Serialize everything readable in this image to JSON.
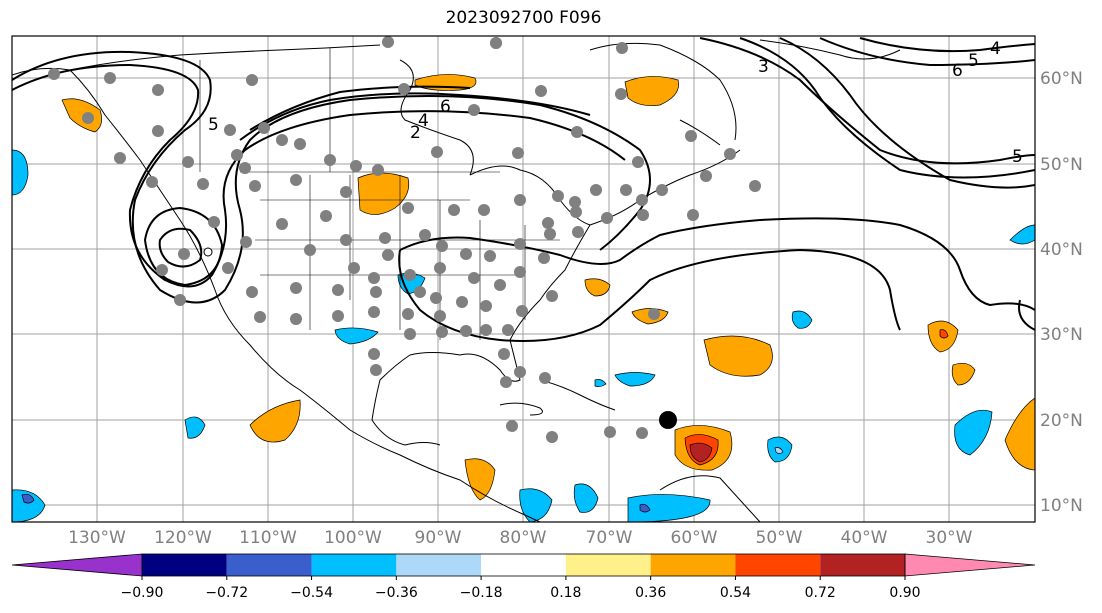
{
  "title": "2023092700 F096",
  "map": {
    "lon_labels": [
      "130°W",
      "120°W",
      "110°W",
      "100°W",
      "90°W",
      "80°W",
      "70°W",
      "60°W",
      "50°W",
      "40°W",
      "30°W"
    ],
    "lat_labels": [
      "60°N",
      "50°N",
      "40°N",
      "30°N",
      "20°N",
      "10°N"
    ],
    "contour_labels": [
      "5",
      "6",
      "4",
      "2",
      "4",
      "5",
      "6",
      "3",
      "5"
    ]
  },
  "colorbar": {
    "ticks": [
      "−0.90",
      "−0.72",
      "−0.54",
      "−0.36",
      "−0.18",
      "0.18",
      "0.36",
      "0.54",
      "0.72",
      "0.90"
    ],
    "colors": [
      "#9932cc",
      "#000080",
      "#3a5fcd",
      "#00bfff",
      "#add8f7",
      "#ffffff",
      "#fff08a",
      "#ffa500",
      "#ff4500",
      "#b22222",
      "#ff89b0"
    ]
  }
}
